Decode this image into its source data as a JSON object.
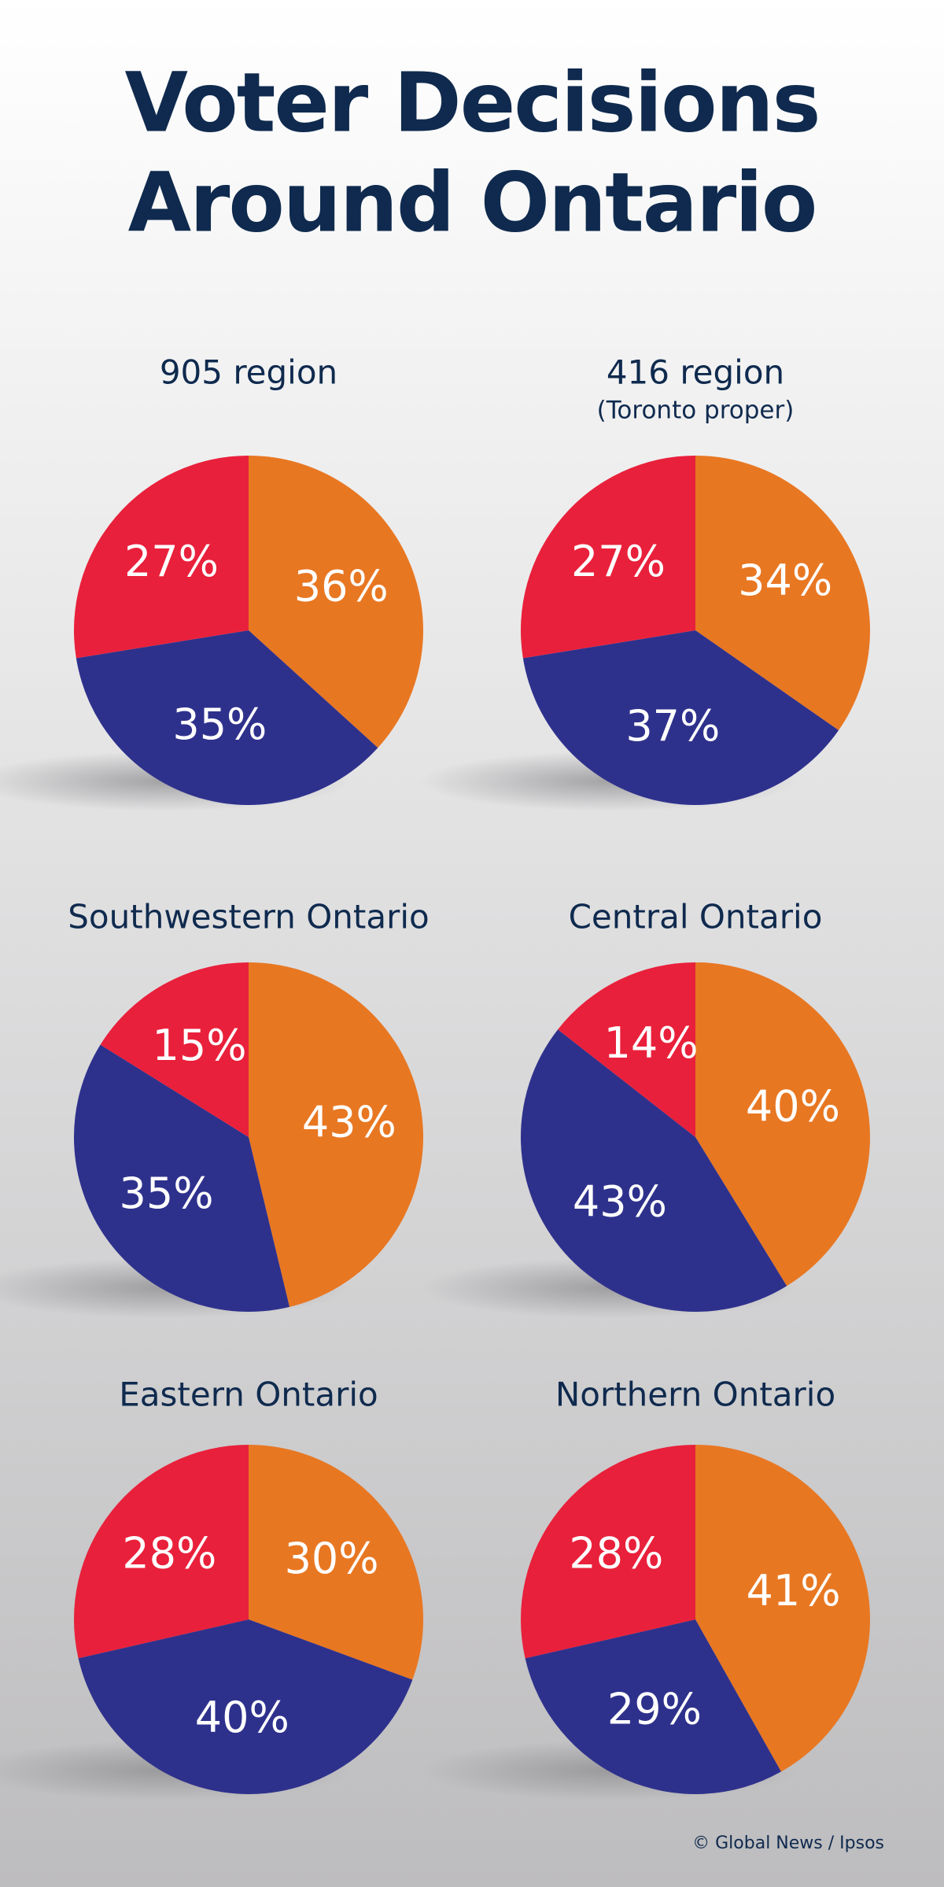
{
  "title": [
    "Voter Decisions",
    "Around Ontario"
  ],
  "source": "© Global News / Ipsos",
  "chart_data": [
    {
      "type": "pie",
      "title": "905 region",
      "values": [
        36,
        35,
        27
      ],
      "value_labels": [
        "36%",
        "35%",
        "27%"
      ],
      "colors": [
        "#e87722",
        "#2e318c",
        "#e9203b"
      ]
    },
    {
      "type": "pie",
      "title": "416 region",
      "subtitle": "(Toronto proper)",
      "values": [
        34,
        37,
        27
      ],
      "value_labels": [
        "34%",
        "37%",
        "27%"
      ],
      "colors": [
        "#e87722",
        "#2e318c",
        "#e9203b"
      ]
    },
    {
      "type": "pie",
      "title": "Southwestern Ontario",
      "values": [
        43,
        35,
        15
      ],
      "value_labels": [
        "43%",
        "35%",
        "15%"
      ],
      "colors": [
        "#e87722",
        "#2e318c",
        "#e9203b"
      ]
    },
    {
      "type": "pie",
      "title": "Central Ontario",
      "values": [
        40,
        43,
        14
      ],
      "value_labels": [
        "40%",
        "43%",
        "14%"
      ],
      "colors": [
        "#e87722",
        "#2e318c",
        "#e9203b"
      ]
    },
    {
      "type": "pie",
      "title": "Eastern Ontario",
      "values": [
        30,
        40,
        28
      ],
      "value_labels": [
        "30%",
        "40%",
        "28%"
      ],
      "colors": [
        "#e87722",
        "#2e318c",
        "#e9203b"
      ]
    },
    {
      "type": "pie",
      "title": "Northern Ontario",
      "values": [
        41,
        29,
        28
      ],
      "value_labels": [
        "41%",
        "29%",
        "28%"
      ],
      "colors": [
        "#e87722",
        "#2e318c",
        "#e9203b"
      ]
    }
  ]
}
